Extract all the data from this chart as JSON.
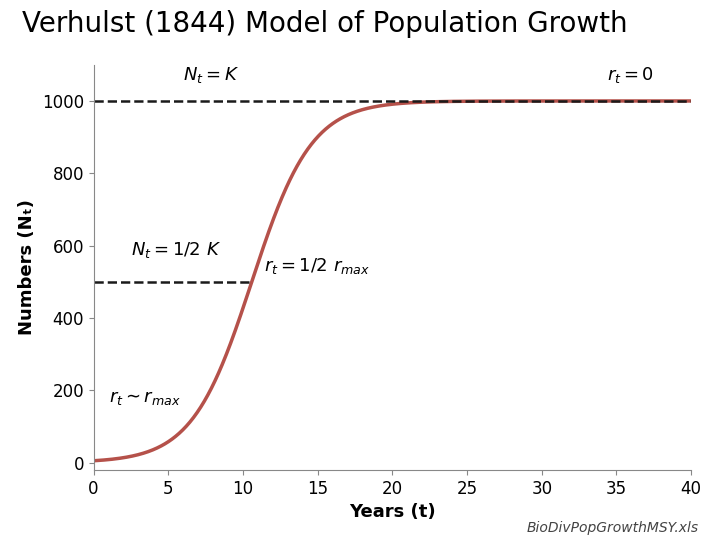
{
  "title": "Verhulst (1844) Model of Population Growth",
  "xlabel": "Years (t)",
  "ylabel": "Numbers (Nₜ)",
  "K": 1000,
  "N0": 5,
  "r": 0.5,
  "t_start": 0,
  "t_end": 40,
  "xlim": [
    0,
    40
  ],
  "ylim": [
    -20,
    1100
  ],
  "xticks": [
    0,
    5,
    10,
    15,
    20,
    25,
    30,
    35,
    40
  ],
  "yticks": [
    0,
    200,
    400,
    600,
    800,
    1000
  ],
  "curve_color": "#b5514a",
  "curve_linewidth": 2.5,
  "dashed_color": "#1a1a1a",
  "dashed_linewidth": 1.8,
  "background_color": "#ffffff",
  "title_fontsize": 20,
  "label_fontsize": 13,
  "tick_fontsize": 12,
  "annotation_fontsize": 13,
  "watermark": "BioDivPopGrowthMSY.xls",
  "watermark_fontsize": 10
}
